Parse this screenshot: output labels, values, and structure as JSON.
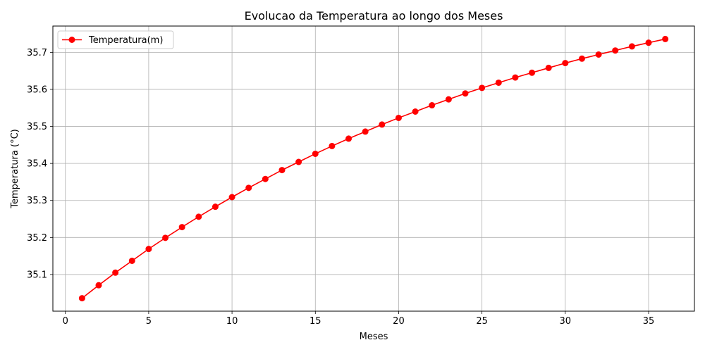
{
  "chart_data": {
    "type": "line",
    "title": "Evolucao da Temperatura ao longo dos Meses",
    "xlabel": "Meses",
    "ylabel": "Temperatura (°C)",
    "xlim": [
      -0.75,
      37.75
    ],
    "ylim": [
      35.001,
      35.771
    ],
    "xticks": [
      0,
      5,
      10,
      15,
      20,
      25,
      30,
      35
    ],
    "yticks": [
      35.1,
      35.2,
      35.3,
      35.4,
      35.5,
      35.6,
      35.7
    ],
    "grid": true,
    "legend_position": "upper-left",
    "line_color": "#ff0000",
    "series": [
      {
        "name": "Temperatura(m)",
        "x": [
          1,
          2,
          3,
          4,
          5,
          6,
          7,
          8,
          9,
          10,
          11,
          12,
          13,
          14,
          15,
          16,
          17,
          18,
          19,
          20,
          21,
          22,
          23,
          24,
          25,
          26,
          27,
          28,
          29,
          30,
          31,
          32,
          33,
          34,
          35,
          36
        ],
        "y": [
          35.036,
          35.071,
          35.105,
          35.137,
          35.169,
          35.199,
          35.228,
          35.256,
          35.283,
          35.309,
          35.334,
          35.358,
          35.382,
          35.404,
          35.426,
          35.447,
          35.467,
          35.486,
          35.505,
          35.523,
          35.54,
          35.557,
          35.573,
          35.589,
          35.604,
          35.618,
          35.632,
          35.645,
          35.658,
          35.671,
          35.683,
          35.694,
          35.705,
          35.716,
          35.726,
          35.736
        ]
      }
    ]
  }
}
